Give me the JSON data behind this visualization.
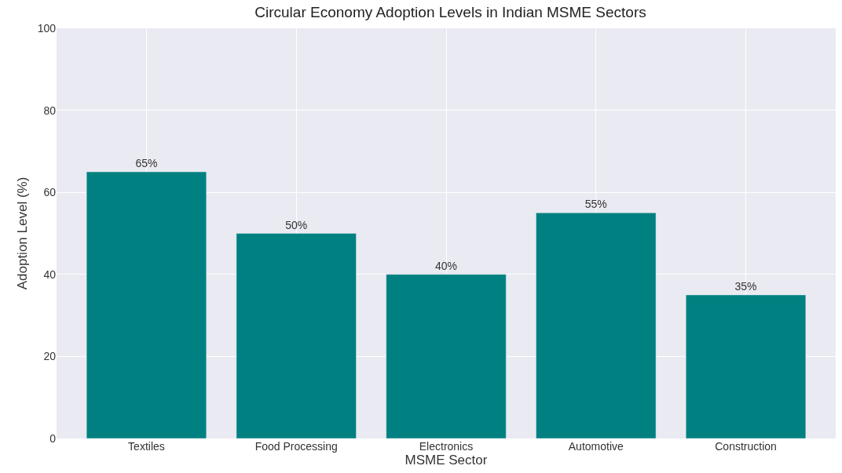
{
  "chart_data": {
    "type": "bar",
    "title": "Circular Economy Adoption Levels in Indian MSME Sectors",
    "xlabel": "MSME Sector",
    "ylabel": "Adoption Level (%)",
    "categories": [
      "Textiles",
      "Food Processing",
      "Electronics",
      "Automotive",
      "Construction"
    ],
    "values": [
      65,
      50,
      40,
      55,
      35
    ],
    "value_labels": [
      "65%",
      "50%",
      "40%",
      "55%",
      "35%"
    ],
    "color": "#008080",
    "ylim": [
      0,
      100
    ],
    "yticks": [
      0,
      20,
      40,
      60,
      80,
      100
    ],
    "grid": true
  }
}
